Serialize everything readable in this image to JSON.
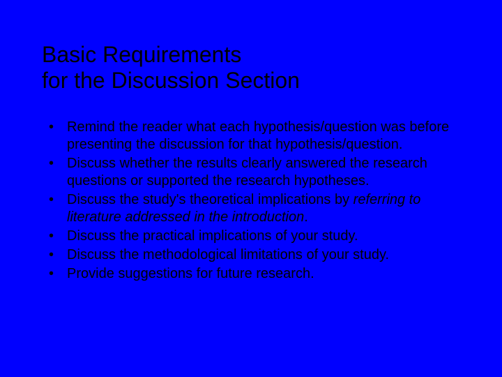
{
  "slide": {
    "background_color": "#0000ff",
    "text_color": "#000000",
    "title_fontsize": 32,
    "body_fontsize": 20,
    "font_family": "Arial",
    "title": {
      "line1": "Basic Requirements",
      "line2": "for the Discussion Section"
    },
    "bullets": [
      {
        "text": "Remind the reader what each hypothesis/question was before presenting the discussion for that hypothesis/question."
      },
      {
        "text": "Discuss  whether the results clearly answered the research questions or supported the research hypotheses."
      },
      {
        "text_pre": "Discuss the study's theoretical implications by ",
        "text_italic": "referring to literature addressed in the introduction",
        "text_post": "."
      },
      {
        "text": "Discuss the practical implications of your study."
      },
      {
        "text": "Discuss the methodological limitations of your study."
      },
      {
        "text": "Provide suggestions for future research."
      }
    ]
  }
}
